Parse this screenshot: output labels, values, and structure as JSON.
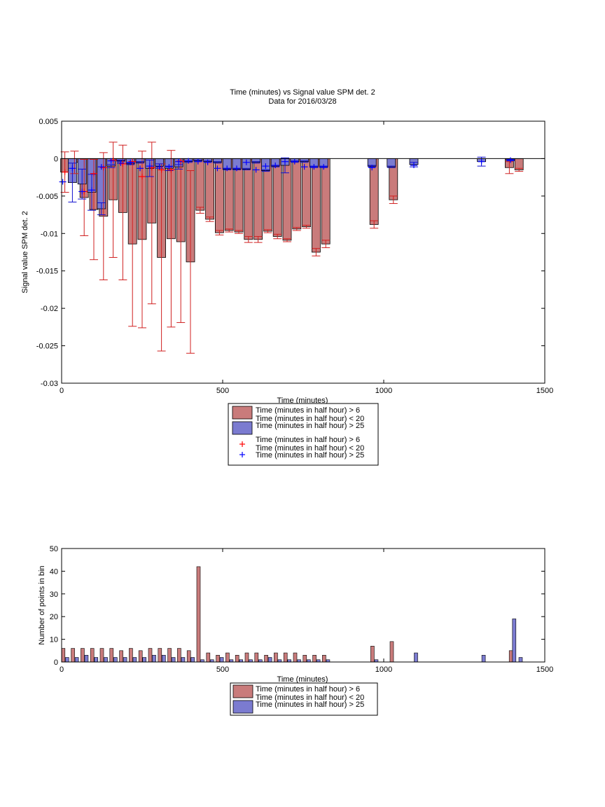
{
  "chart_data": [
    {
      "type": "bar",
      "title": "Time (minutes) vs Signal value SPM det. 2",
      "subtitle": "Data for 2016/03/28",
      "xlabel": "Time (minutes)",
      "ylabel": "Signal value SPM det. 2",
      "xlim": [
        0,
        1500
      ],
      "ylim": [
        -0.03,
        0.005
      ],
      "xticks": [
        "0",
        "500",
        "1000",
        "1500"
      ],
      "yticks": [
        "-0.03",
        "-0.025",
        "-0.02",
        "-0.015",
        "-0.01",
        "-0.005",
        "0",
        "0.005"
      ],
      "legend_position": "below",
      "series": [
        {
          "name": "Time (minutes in half hour) > 6\nTime (minutes in half hour) < 20",
          "color": "#c97b7b",
          "x": [
            10,
            40,
            70,
            100,
            130,
            160,
            190,
            220,
            250,
            280,
            310,
            340,
            370,
            400,
            430,
            460,
            490,
            520,
            550,
            580,
            610,
            640,
            670,
            700,
            730,
            760,
            790,
            820,
            970,
            1030,
            1390,
            1420
          ],
          "y": [
            -0.0018,
            -0.0005,
            -0.0052,
            -0.0068,
            -0.0077,
            -0.0055,
            -0.0072,
            -0.0114,
            -0.0108,
            -0.0086,
            -0.0132,
            -0.0107,
            -0.0111,
            -0.0138,
            -0.0069,
            -0.0081,
            -0.0099,
            -0.0096,
            -0.0098,
            -0.0108,
            -0.0108,
            -0.0097,
            -0.0104,
            -0.0109,
            -0.0094,
            -0.0091,
            -0.0125,
            -0.0114,
            -0.0088,
            -0.0055,
            -0.0012,
            -0.0015
          ],
          "err": [
            0.0027,
            0.0015,
            0.0051,
            0.0067,
            0.0085,
            0.0077,
            0.009,
            0.011,
            0.0118,
            0.0108,
            0.0125,
            0.0118,
            0.0108,
            0.0122,
            0.0004,
            0.0003,
            0.0003,
            0.0002,
            0.0002,
            0.0004,
            0.0004,
            0.0002,
            0.0003,
            0.0002,
            0.0002,
            0.0002,
            0.0005,
            0.0005,
            0.0005,
            0.0005,
            0.0008,
            0.0002
          ]
        },
        {
          "name": "Time (minutes in half hour) > 25",
          "color": "#7b7bd0",
          "x": [
            40,
            70,
            100,
            130,
            160,
            190,
            220,
            250,
            280,
            310,
            340,
            370,
            400,
            430,
            460,
            490,
            520,
            550,
            580,
            610,
            640,
            670,
            700,
            730,
            760,
            790,
            820,
            970,
            1030,
            1100,
            1310,
            1400
          ],
          "y": [
            -0.0032,
            -0.0034,
            -0.0045,
            -0.0067,
            -0.001,
            -0.0003,
            -0.0007,
            -0.0005,
            -0.0013,
            -0.001,
            -0.0013,
            -0.0011,
            -0.0004,
            -0.0003,
            -0.0004,
            -0.0005,
            -0.0014,
            -0.0014,
            -0.0014,
            -0.0005,
            -0.0016,
            -0.001,
            -0.0009,
            -0.0004,
            -0.0004,
            -0.0011,
            -0.0011,
            -0.001,
            -0.0011,
            -0.0008,
            -0.0004,
            -0.0002
          ],
          "err": [
            0.0026,
            0.002,
            0.0024,
            0.0008,
            0.0002,
            0.0001,
            0.0001,
            0.0001,
            0.0011,
            0.0003,
            0.0003,
            0.0003,
            0.0001,
            0.0001,
            0.0001,
            0.0001,
            0.0001,
            0.0001,
            0.0001,
            0.0001,
            0.0001,
            0.0001,
            0.001,
            0.0001,
            0.0001,
            0.0001,
            0.0001,
            0.0001,
            0.0001,
            0.0003,
            0.0006,
            0.0001
          ]
        },
        {
          "name": "Time (minutes in half hour) > 6\nTime (minutes in half hour) < 20",
          "kind": "marker",
          "color": "#ff0000",
          "x": [
            10,
            70,
            100,
            130,
            160,
            190,
            220,
            250,
            280,
            310,
            340,
            370
          ],
          "y": [
            -0.0018,
            -0.0044,
            -0.002,
            -0.0012,
            -0.0002,
            -0.0007,
            -0.0004,
            -0.0024,
            -0.0012,
            -0.0015,
            -0.0015,
            -0.0004
          ]
        },
        {
          "name": "Time (minutes in half hour) > 25",
          "kind": "marker",
          "color": "#0000ff",
          "x": [
            10,
            40,
            70,
            100,
            130,
            160,
            190,
            220,
            250,
            280,
            310,
            340,
            370,
            400,
            430,
            460,
            490,
            520,
            550,
            580,
            610,
            640,
            670,
            700,
            730,
            760,
            790,
            820,
            970,
            1100,
            1310,
            1400
          ],
          "y": [
            -0.0031,
            -0.0013,
            -0.0044,
            -0.0042,
            -0.0011,
            -0.0003,
            -0.0006,
            -0.0005,
            -0.0013,
            -0.001,
            -0.0011,
            -0.0011,
            -0.0004,
            -0.0003,
            -0.0004,
            -0.0005,
            -0.0013,
            -0.0013,
            -0.0013,
            -0.0005,
            -0.0015,
            -0.001,
            -0.0009,
            -0.0004,
            -0.0004,
            -0.0011,
            -0.0011,
            -0.0011,
            -0.0012,
            -0.0009,
            -0.0004,
            -0.0002
          ]
        }
      ]
    },
    {
      "type": "bar",
      "xlabel": "Time (minutes)",
      "ylabel": "Number of points in bin",
      "xlim": [
        0,
        1500
      ],
      "ylim": [
        0,
        50
      ],
      "xticks": [
        "0",
        "500",
        "1000",
        "1500"
      ],
      "yticks": [
        "0",
        "10",
        "20",
        "30",
        "40",
        "50"
      ],
      "legend_position": "below",
      "series": [
        {
          "name": "Time (minutes in half hour) > 6\nTime (minutes in half hour) < 20",
          "color": "#c97b7b",
          "x": [
            5,
            35,
            65,
            95,
            125,
            155,
            185,
            215,
            245,
            275,
            305,
            335,
            365,
            395,
            425,
            455,
            485,
            515,
            545,
            575,
            605,
            635,
            665,
            695,
            725,
            755,
            785,
            815,
            965,
            1025,
            1395
          ],
          "values": [
            6,
            6,
            6,
            6,
            6,
            6,
            5,
            6,
            5,
            6,
            6,
            6,
            6,
            5,
            42,
            4,
            3,
            4,
            3,
            4,
            4,
            3,
            4,
            4,
            4,
            3,
            3,
            3,
            7,
            9,
            5
          ]
        },
        {
          "name": "Time (minutes in half hour) > 25",
          "color": "#7b7bd0",
          "x": [
            17,
            47,
            77,
            107,
            137,
            167,
            197,
            227,
            257,
            287,
            317,
            347,
            377,
            407,
            437,
            467,
            497,
            527,
            557,
            587,
            617,
            647,
            677,
            707,
            737,
            767,
            797,
            827,
            977,
            1100,
            1310,
            1405,
            1425
          ],
          "values": [
            2,
            2,
            3,
            2,
            2,
            2,
            2,
            2,
            2,
            3,
            3,
            2,
            2,
            2,
            1,
            1,
            2,
            1,
            1,
            1,
            1,
            2,
            1,
            1,
            1,
            1,
            1,
            1,
            1,
            4,
            3,
            19,
            2
          ]
        }
      ]
    }
  ],
  "legend_top": [
    {
      "line1": "Time (minutes in half hour) > 6",
      "line2": "Time (minutes in half hour) < 20",
      "kind": "bar",
      "color": "#c97b7b"
    },
    {
      "line1": "Time (minutes in half hour) > 25",
      "line2": "",
      "kind": "bar",
      "color": "#7b7bd0"
    },
    {
      "line1": "Time (minutes in half hour) > 6",
      "line2": "Time (minutes in half hour) < 20",
      "kind": "marker",
      "color": "#ff0000"
    },
    {
      "line1": "Time (minutes in half hour) > 25",
      "line2": "",
      "kind": "marker",
      "color": "#0000ff"
    }
  ],
  "legend_bottom": [
    {
      "line1": "Time (minutes in half hour) > 6",
      "line2": "Time (minutes in half hour) < 20",
      "kind": "bar",
      "color": "#c97b7b"
    },
    {
      "line1": "Time (minutes in half hour) > 25",
      "line2": "",
      "kind": "bar",
      "color": "#7b7bd0"
    }
  ]
}
